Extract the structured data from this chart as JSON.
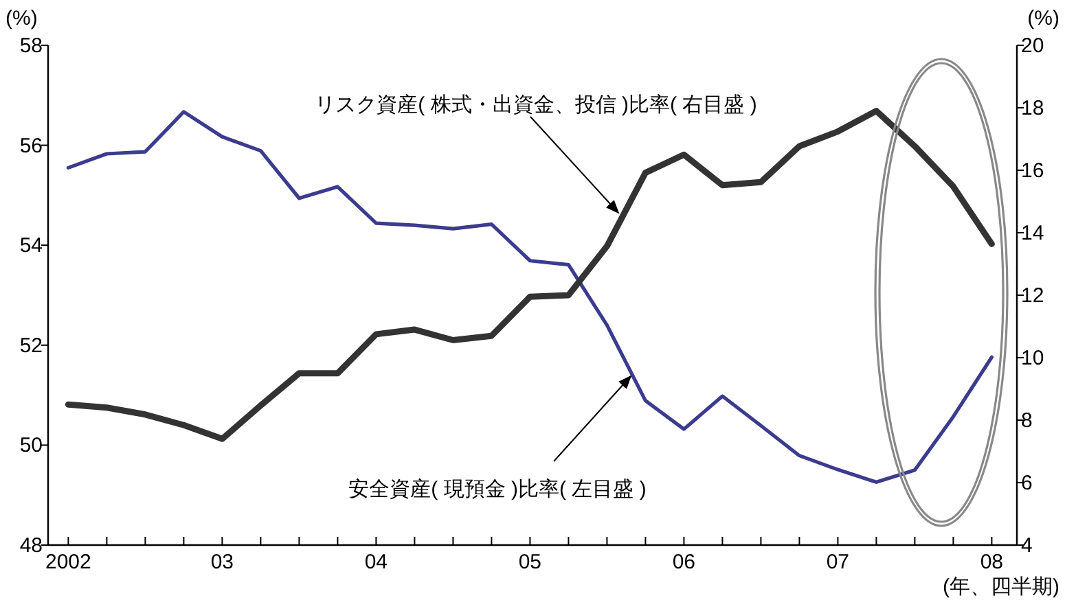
{
  "chart_data": {
    "type": "line",
    "categories": [
      "2002",
      null,
      null,
      null,
      "03",
      null,
      null,
      null,
      "04",
      null,
      null,
      null,
      "05",
      null,
      null,
      null,
      "06",
      null,
      null,
      null,
      "07",
      null,
      null,
      null,
      "08"
    ],
    "series": [
      {
        "name": "安全資産( 現預金 )比率( 左目盛 )",
        "color": "#3b3b8f",
        "axis": "y",
        "values": [
          55.55,
          55.83,
          55.87,
          56.67,
          56.17,
          55.89,
          54.94,
          55.17,
          54.44,
          54.4,
          54.33,
          54.42,
          53.69,
          53.61,
          52.4,
          50.89,
          50.32,
          50.98,
          50.39,
          49.79,
          49.51,
          49.26,
          49.5,
          50.57,
          51.76
        ]
      },
      {
        "name": "リスク資産( 株式・出資金、投信 )比率( 右目盛 )",
        "color": "#333333",
        "axis": "y2",
        "values": [
          8.5,
          8.4,
          8.18,
          7.84,
          7.4,
          8.47,
          9.5,
          9.5,
          10.75,
          10.9,
          10.56,
          10.7,
          11.95,
          12.0,
          13.57,
          15.92,
          16.5,
          15.52,
          15.62,
          16.77,
          17.24,
          17.9,
          16.77,
          15.48,
          13.64
        ]
      }
    ],
    "ylim": [
      48,
      58
    ],
    "yticks": [
      48,
      50,
      52,
      54,
      56,
      58
    ],
    "y2lim": [
      4,
      20
    ],
    "y2ticks": [
      4,
      6,
      8,
      10,
      12,
      14,
      16,
      18,
      20
    ],
    "ylabel": "(%)",
    "y2label": "(%)",
    "xlabel": "(年、四半期)",
    "grid": false,
    "marker": "none",
    "line_style": "solid"
  }
}
